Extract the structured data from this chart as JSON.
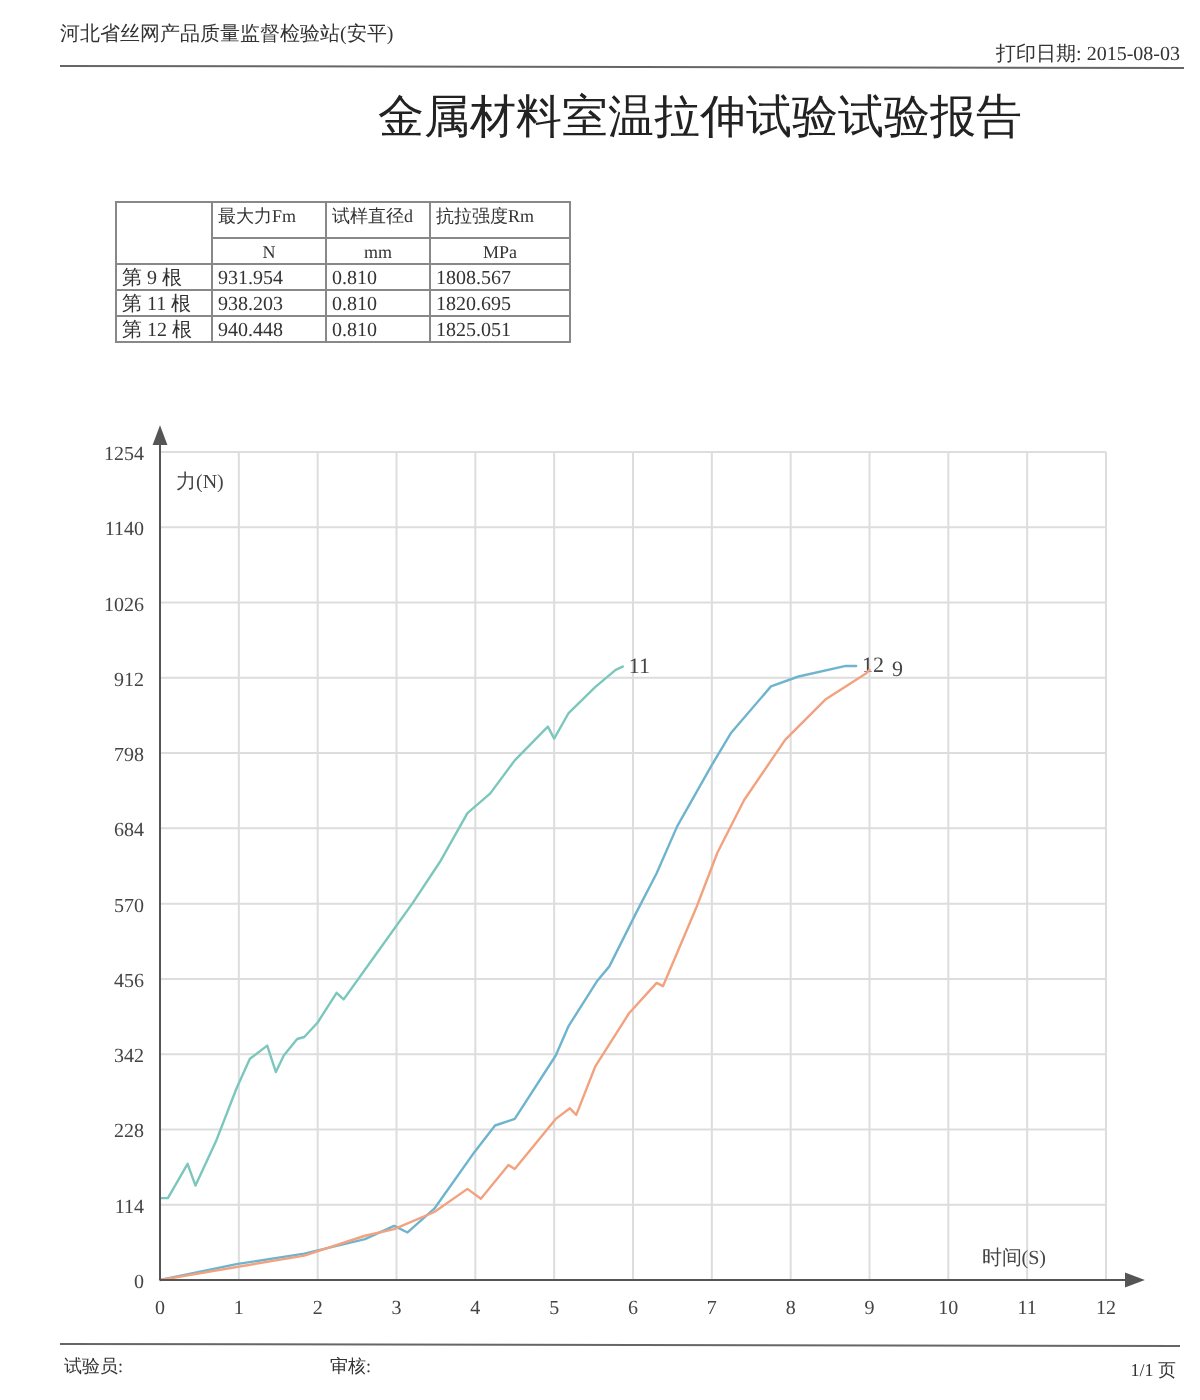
{
  "chart_data": {
    "type": "line",
    "title": "金属材料室温拉伸试验试验报告",
    "xlabel": "时间(S)",
    "ylabel": "力(N)",
    "xlim": [
      0,
      12
    ],
    "xticks": [
      0,
      1,
      2,
      3,
      4,
      5,
      6,
      7,
      8,
      9,
      10,
      11,
      12
    ],
    "ylim": [
      0,
      1254
    ],
    "yticks": [
      0,
      114,
      228,
      342,
      456,
      570,
      684,
      798,
      912,
      1026,
      1140,
      1254
    ],
    "grid": true,
    "legend": false,
    "marker": "none",
    "line_style": "solid",
    "series": [
      {
        "name": "11",
        "color": "#7cc7bd",
        "x": [
          0,
          0.1,
          0.35,
          0.45,
          0.71,
          0.97,
          1.14,
          1.36,
          1.47,
          1.57,
          1.74,
          1.83,
          2.0,
          2.24,
          2.33,
          2.69,
          3.2,
          3.55,
          3.9,
          4.19,
          4.5,
          4.92,
          5.0,
          5.18,
          5.52,
          5.78,
          5.87
        ],
        "values": [
          124,
          124,
          176,
          143,
          210,
          290,
          335,
          355,
          315,
          340,
          365,
          368,
          390,
          435,
          425,
          485,
          570,
          633,
          707,
          737,
          787,
          838,
          820,
          858,
          898,
          924,
          929
        ]
      },
      {
        "name": "12",
        "color": "#6fb4cf",
        "x": [
          0,
          0.97,
          1.83,
          2.6,
          2.97,
          3.14,
          3.48,
          3.99,
          4.25,
          4.5,
          5.02,
          5.18,
          5.54,
          5.7,
          6.04,
          6.3,
          6.56,
          6.99,
          7.24,
          7.75,
          8.1,
          8.7,
          8.83
        ],
        "values": [
          0,
          24,
          40,
          62,
          82,
          72,
          108,
          194,
          234,
          244,
          340,
          384,
          452,
          475,
          556,
          616,
          687,
          778,
          828,
          899,
          914,
          930,
          930
        ]
      },
      {
        "name": "9",
        "color": "#f2a27e",
        "x": [
          0,
          1.83,
          2.6,
          2.97,
          3.48,
          3.9,
          4.07,
          4.42,
          4.5,
          5.02,
          5.2,
          5.28,
          5.52,
          5.95,
          6.3,
          6.38,
          6.81,
          7.07,
          7.41,
          7.93,
          8.44,
          8.96,
          9.0
        ],
        "values": [
          0,
          37,
          67,
          77,
          103,
          138,
          123,
          174,
          168,
          244,
          260,
          250,
          323,
          404,
          450,
          445,
          566,
          647,
          727,
          818,
          879,
          919,
          924
        ]
      }
    ],
    "annotations": [
      "河北省丝网产品质量监督检验站(安平)",
      "打印日期: 2015-08-03",
      "最大力Fm",
      "试样直径d",
      "抗拉强度Rm",
      "N",
      "mm",
      "MPa",
      "第 9 根",
      "931.954",
      "0.810",
      "1808.567",
      "第 11 根",
      "938.203",
      "0.810",
      "1820.695",
      "第 12 根",
      "940.448",
      "0.810",
      "1825.051",
      "试验员:",
      "审核:",
      "1/1 页"
    ]
  }
}
